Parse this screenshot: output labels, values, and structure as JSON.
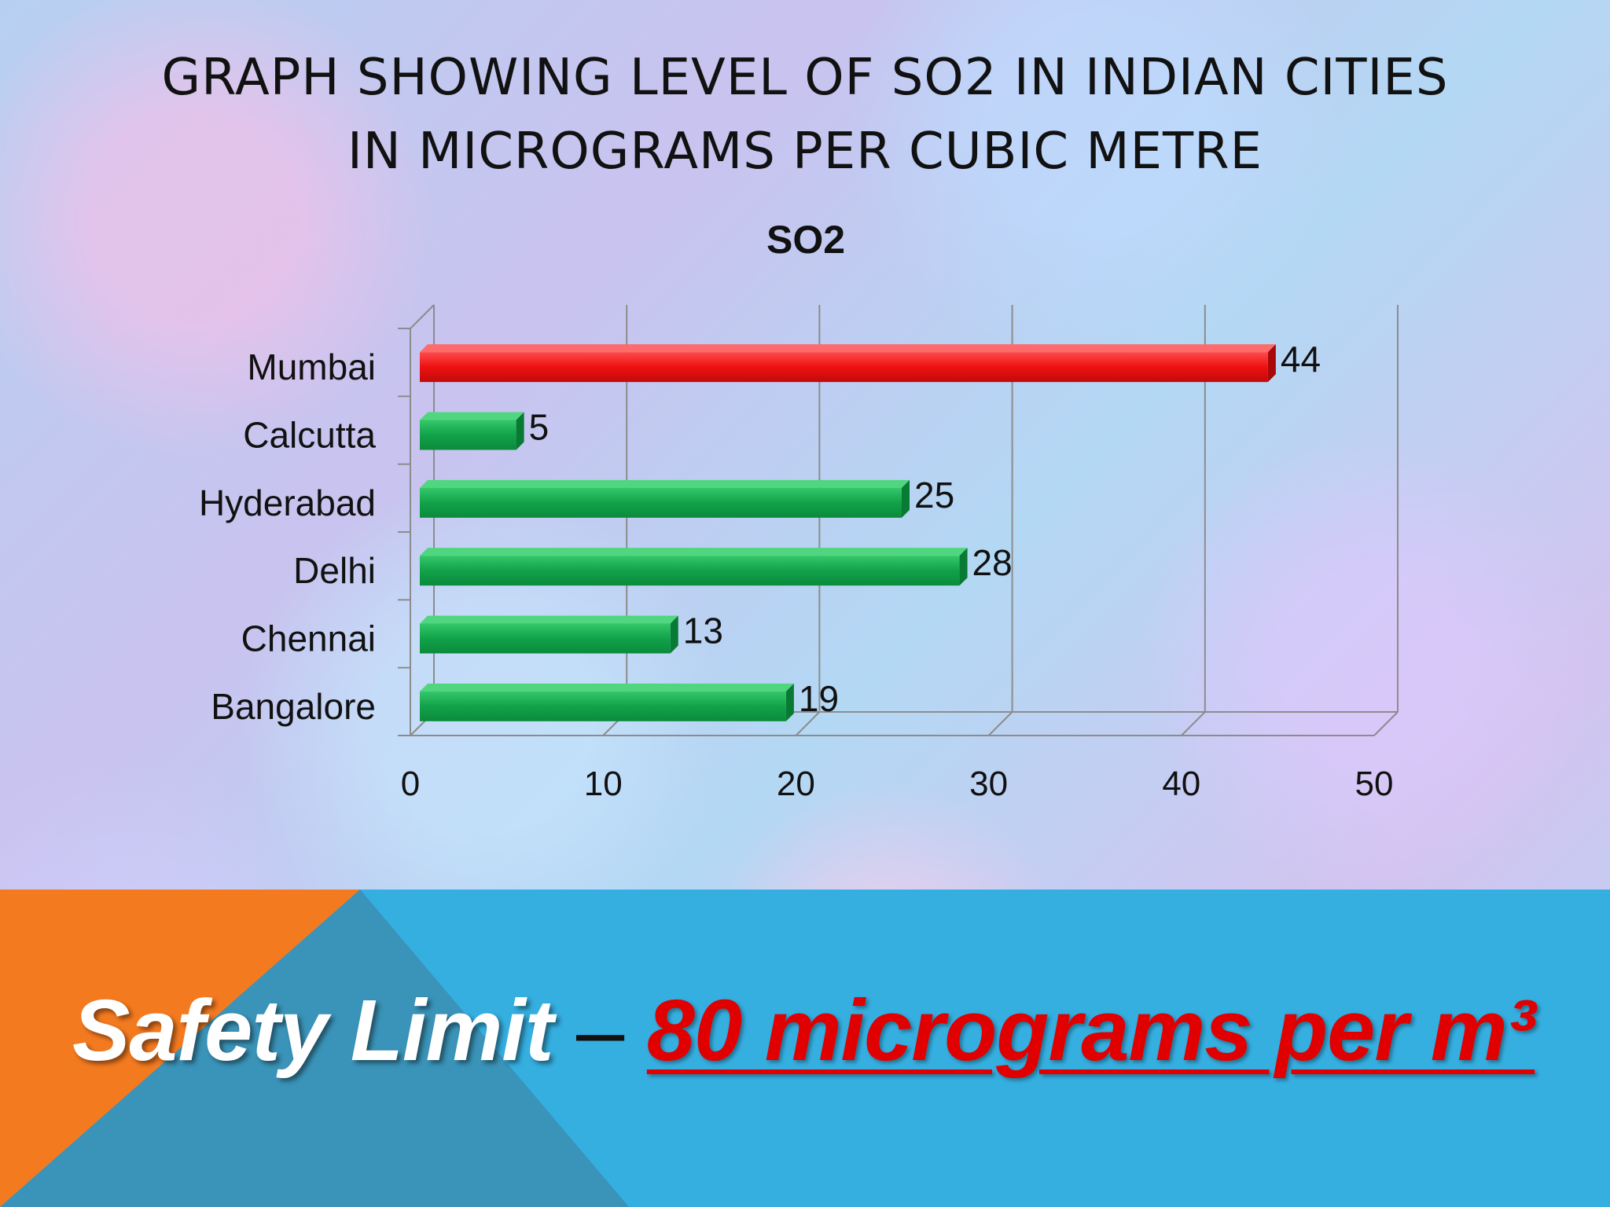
{
  "slide": {
    "title_line1": "GRAPH SHOWING LEVEL OF SO2 IN INDIAN CITIES",
    "title_line2": "IN MICROGRAMS PER CUBIC METRE"
  },
  "footer": {
    "label": "Safety Limit",
    "dash": " – ",
    "value": " 80 micrograms per m³",
    "colors": {
      "band": "#35aee0",
      "orange": "#f47a20",
      "teal": "#3a93b8",
      "value": "#e10000"
    }
  },
  "chart_data": {
    "type": "bar",
    "orientation": "horizontal",
    "title": "SO2",
    "categories": [
      "Mumbai",
      "Calcutta",
      "Hyderabad",
      "Delhi",
      "Chennai",
      "Bangalore"
    ],
    "values": [
      44,
      5,
      25,
      28,
      13,
      19
    ],
    "bar_colors": [
      "#ee1111",
      "#12a24a",
      "#12a24a",
      "#12a24a",
      "#12a24a",
      "#12a24a"
    ],
    "xlim": [
      0,
      50
    ],
    "xticks": [
      0,
      10,
      20,
      30,
      40,
      50
    ],
    "data_labels": true,
    "grid": true,
    "legend": "none"
  }
}
